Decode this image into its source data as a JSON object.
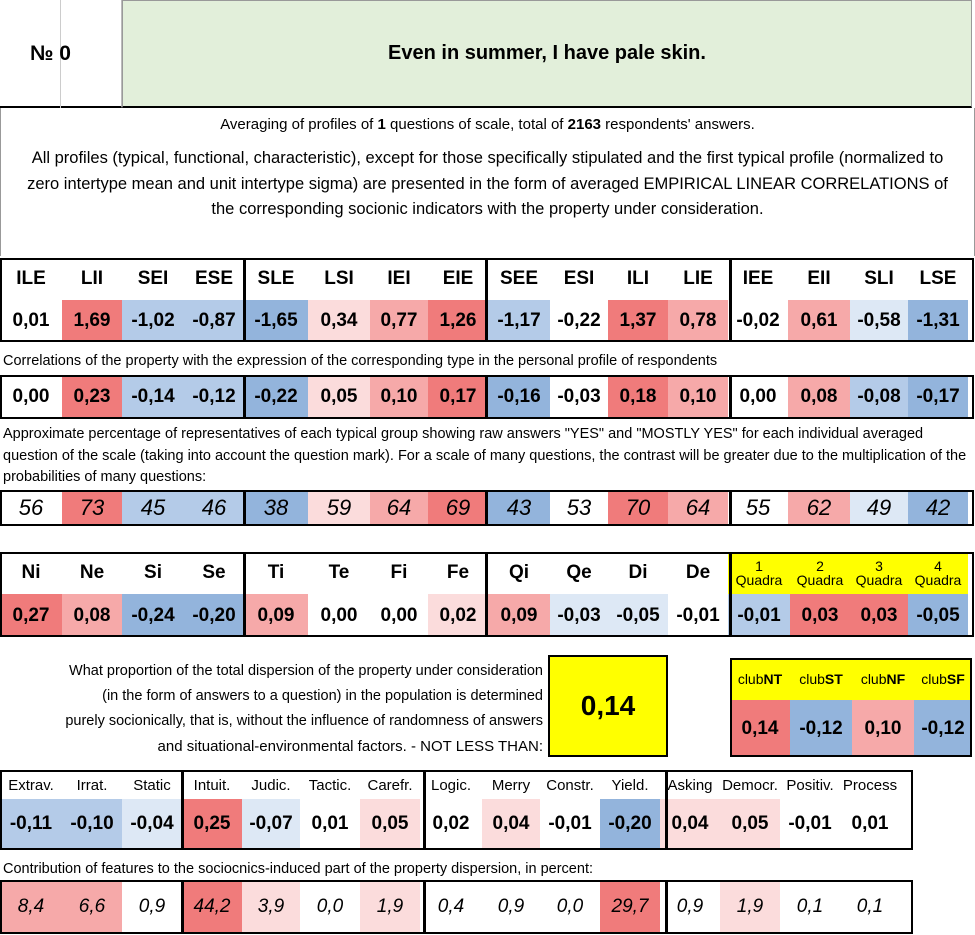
{
  "header": {
    "number_label": "№ 0",
    "title": "Even in summer, I have pale skin."
  },
  "averaging": {
    "prefix": "Averaging of profiles of ",
    "count": "1",
    "middle": " questions of scale, total of ",
    "respondents": "2163",
    "suffix": " respondents' answers."
  },
  "description": "All profiles (typical, functional, characteristic), except for those specifically stipulated and the first typical profile (normalized to zero intertype mean and unit intertype sigma) are presented in the form of averaged EMPIRICAL LINEAR CORRELATIONS of the corresponding socionic indicators with the property under consideration.",
  "types": [
    "ILE",
    "LII",
    "SEI",
    "ESE",
    "SLE",
    "LSI",
    "IEI",
    "EIE",
    "SEE",
    "ESI",
    "ILI",
    "LIE",
    "IEE",
    "EII",
    "SLI",
    "LSE"
  ],
  "type_profile": [
    "0,01",
    "1,69",
    "-1,02",
    "-0,87",
    "-1,65",
    "0,34",
    "0,77",
    "1,26",
    "-1,17",
    "-0,22",
    "1,37",
    "0,78",
    "-0,02",
    "0,61",
    "-0,58",
    "-1,31"
  ],
  "correlation_note": "Correlations of the property with the expression of the corresponding type in the personal profile of respondents",
  "type_correlations": [
    "0,00",
    "0,23",
    "-0,14",
    "-0,12",
    "-0,22",
    "0,05",
    "0,10",
    "0,17",
    "-0,16",
    "-0,03",
    "0,18",
    "0,10",
    "0,00",
    "0,08",
    "-0,08",
    "-0,17"
  ],
  "percentage_note": "Approximate percentage of representatives of each typical group showing raw answers \"YES\" and \"MOSTLY YES\" for each individual averaged question of the scale (taking into account the question mark). For a scale of many questions, the contrast will be greater due to the multiplication of the probabilities of many questions:",
  "type_percentages": [
    "56",
    "73",
    "45",
    "46",
    "38",
    "59",
    "64",
    "69",
    "43",
    "53",
    "70",
    "64",
    "55",
    "62",
    "49",
    "42"
  ],
  "functions": [
    "Ni",
    "Ne",
    "Si",
    "Se",
    "Ti",
    "Te",
    "Fi",
    "Fe",
    "Qi",
    "Qe",
    "Di",
    "De"
  ],
  "function_values": [
    "0,27",
    "0,08",
    "-0,24",
    "-0,20",
    "0,09",
    "0,00",
    "0,00",
    "0,02",
    "0,09",
    "-0,03",
    "-0,05",
    "-0,01"
  ],
  "quadras": [
    {
      "num": "1",
      "label": "Quadra",
      "value": "-0,01"
    },
    {
      "num": "2",
      "label": "Quadra",
      "value": "0,03"
    },
    {
      "num": "3",
      "label": "Quadra",
      "value": "0,03"
    },
    {
      "num": "4",
      "label": "Quadra",
      "value": "-0,05"
    }
  ],
  "dispersion_note": [
    "What proportion of the total dispersion of the property under consideration",
    "(in the form of answers to a question) in the population is determined",
    "purely socionically, that is, without the influence of randomness of answers",
    "and situational-environmental factors. - NOT LESS THAN:"
  ],
  "dispersion_value": "0,14",
  "clubs": [
    {
      "prefix": "club",
      "name": "NT",
      "value": "0,14"
    },
    {
      "prefix": "club",
      "name": "ST",
      "value": "-0,12"
    },
    {
      "prefix": "club",
      "name": "NF",
      "value": "0,10"
    },
    {
      "prefix": "club",
      "name": "SF",
      "value": "-0,12"
    }
  ],
  "traits": [
    "Extrav.",
    "Irrat.",
    "Static",
    "Intuit.",
    "Judic.",
    "Tactic.",
    "Carefr.",
    "Logic.",
    "Merry",
    "Constr.",
    "Yield.",
    "Asking",
    "Democr.",
    "Positiv.",
    "Process"
  ],
  "trait_values": [
    "-0,11",
    "-0,10",
    "-0,04",
    "0,25",
    "-0,07",
    "0,01",
    "0,05",
    "0,02",
    "0,04",
    "-0,01",
    "-0,20",
    "0,04",
    "0,05",
    "-0,01",
    "0,01"
  ],
  "contribution_note": "Contribution of features to the sociocnics-induced part of the property dispersion, in percent:",
  "trait_contributions": [
    "8,4",
    "6,6",
    "0,9",
    "44,2",
    "3,9",
    "0,0",
    "1,9",
    "0,4",
    "0,9",
    "0,0",
    "29,7",
    "0,9",
    "1,9",
    "0,1",
    "0,1"
  ],
  "colors": {
    "header_green": "#e2efda",
    "highlight_yellow": "#ffff00",
    "red_strong": "#f07b7b",
    "red_mid": "#f6a9a9",
    "red_light": "#fbdcdc",
    "blue_strong": "#93b4dc",
    "blue_mid": "#b4cbe8",
    "blue_light": "#dde8f5"
  }
}
